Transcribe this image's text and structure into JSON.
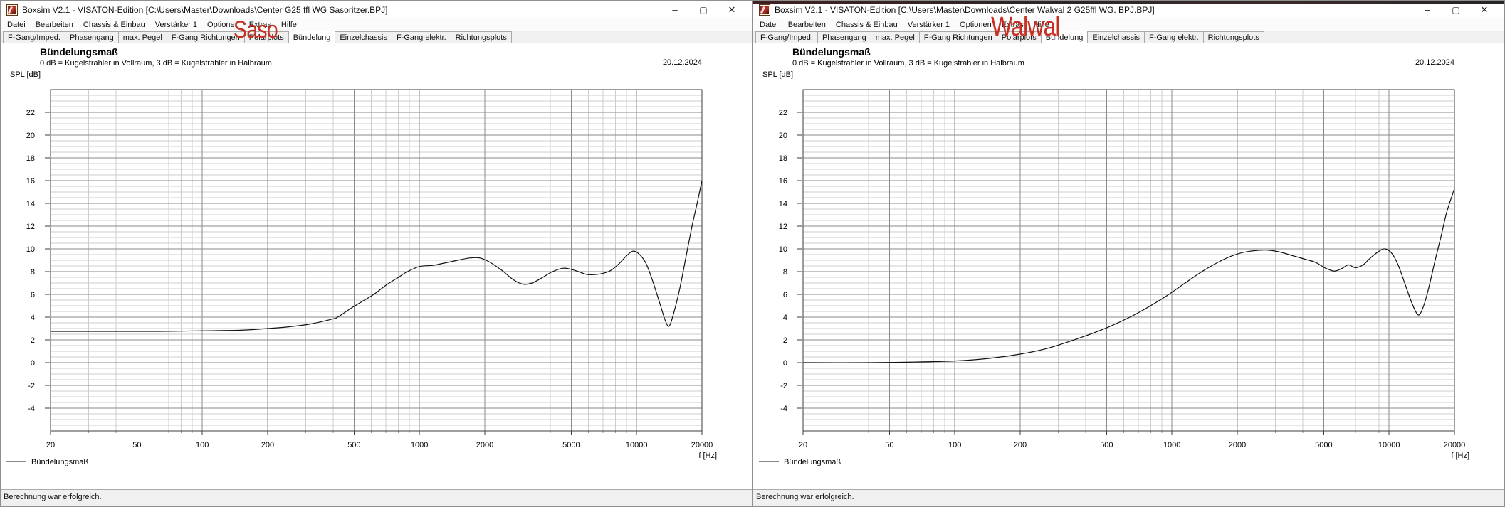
{
  "accent_colors": {
    "annotation_red": "#c62f22",
    "grid_major": "#8a8a8a",
    "grid_minor": "#cdcdcd",
    "frame": "#3c3c3c",
    "curve": "#111111",
    "chrome_bg": "#f0f0f0"
  },
  "windows": [
    {
      "title": "Boxsim V2.1 - VISATON-Edition [C:\\Users\\Master\\Downloads\\Center G25 ffl WG Sasoritzer.BPJ]",
      "annotation": "Saso",
      "menu": [
        "Datei",
        "Bearbeiten",
        "Chassis & Einbau",
        "Verstärker 1",
        "Optionen",
        "Extras",
        "Hilfe"
      ],
      "tabs": [
        "F-Gang/Imped.",
        "Phasengang",
        "max. Pegel",
        "F-Gang Richtungen",
        "Polarplots",
        "Bündelung",
        "Einzelchassis",
        "F-Gang elektr.",
        "Richtungsplots"
      ],
      "active_tab": "Bündelung",
      "window_buttons": {
        "minimize": "–",
        "maximize": "▢",
        "close": "✕"
      },
      "status": "Berechnung war erfolgreich.",
      "chart": 0
    },
    {
      "title": "Boxsim V2.1 - VISATON-Edition [C:\\Users\\Master\\Downloads\\Center Walwal 2 G25ffl WG. BPJ.BPJ]",
      "annotation": "Walwal",
      "menu": [
        "Datei",
        "Bearbeiten",
        "Chassis & Einbau",
        "Verstärker 1",
        "Optionen",
        "Extras",
        "Hilfe"
      ],
      "tabs": [
        "F-Gang/Imped.",
        "Phasengang",
        "max. Pegel",
        "F-Gang Richtungen",
        "Polarplots",
        "Bündelung",
        "Einzelchassis",
        "F-Gang elektr.",
        "Richtungsplots"
      ],
      "active_tab": "Bündelung",
      "window_buttons": {
        "minimize": "–",
        "maximize": "▢",
        "close": "✕"
      },
      "status": "Berechnung war erfolgreich.",
      "chart": 1
    }
  ],
  "chart_data": [
    {
      "type": "line",
      "title": "Bündelungsmaß",
      "subtitle": "0 dB = Kugelstrahler in Vollraum, 3 dB = Kugelstrahler in Halbraum",
      "date": "20.12.2024",
      "xlabel": "f [Hz]",
      "ylabel": "SPL [dB]",
      "xscale": "log",
      "xlim": [
        20,
        20000
      ],
      "ylim": [
        -6,
        24
      ],
      "grid": true,
      "legend_position": "bottom-left",
      "x_major_ticks": [
        20,
        50,
        100,
        200,
        500,
        1000,
        2000,
        5000,
        10000,
        20000
      ],
      "x_tick_labels": [
        "20",
        "50",
        "100",
        "200",
        "500",
        "1000",
        "2000",
        "5000",
        "10000",
        "20000"
      ],
      "x_minor_ticks": [
        30,
        40,
        60,
        70,
        80,
        90,
        300,
        400,
        600,
        700,
        800,
        900,
        3000,
        4000,
        6000,
        7000,
        8000,
        9000
      ],
      "y_labeled_ticks": [
        22,
        20,
        18,
        16,
        14,
        12,
        10,
        8,
        6,
        4,
        2,
        0,
        -2,
        -4
      ],
      "y_major_step": 2,
      "y_minor_step": 0.5,
      "series": [
        {
          "name": "Bündelungsmaß",
          "color": "#111111",
          "points": [
            [
              20,
              2.75
            ],
            [
              40,
              2.75
            ],
            [
              63,
              2.75
            ],
            [
              100,
              2.8
            ],
            [
              150,
              2.85
            ],
            [
              200,
              3.0
            ],
            [
              250,
              3.15
            ],
            [
              315,
              3.4
            ],
            [
              400,
              3.85
            ],
            [
              420,
              4.0
            ],
            [
              500,
              4.95
            ],
            [
              616,
              6.0
            ],
            [
              700,
              6.8
            ],
            [
              800,
              7.5
            ],
            [
              880,
              8.0
            ],
            [
              1000,
              8.45
            ],
            [
              1150,
              8.55
            ],
            [
              1300,
              8.75
            ],
            [
              1500,
              9.0
            ],
            [
              1700,
              9.2
            ],
            [
              1900,
              9.2
            ],
            [
              2100,
              8.85
            ],
            [
              2400,
              8.1
            ],
            [
              2700,
              7.3
            ],
            [
              3000,
              6.9
            ],
            [
              3300,
              7.0
            ],
            [
              3700,
              7.5
            ],
            [
              4100,
              8.0
            ],
            [
              4600,
              8.3
            ],
            [
              5000,
              8.2
            ],
            [
              5400,
              8.0
            ],
            [
              5900,
              7.75
            ],
            [
              6500,
              7.75
            ],
            [
              7000,
              7.85
            ],
            [
              7600,
              8.1
            ],
            [
              8300,
              8.7
            ],
            [
              9000,
              9.4
            ],
            [
              9600,
              9.8
            ],
            [
              10200,
              9.6
            ],
            [
              11000,
              8.8
            ],
            [
              11800,
              7.3
            ],
            [
              12800,
              5.2
            ],
            [
              13500,
              3.8
            ],
            [
              14100,
              3.2
            ],
            [
              14800,
              4.3
            ],
            [
              15800,
              6.5
            ],
            [
              17000,
              9.6
            ],
            [
              18000,
              12.0
            ],
            [
              19000,
              14.0
            ],
            [
              20000,
              16.0
            ]
          ]
        }
      ]
    },
    {
      "type": "line",
      "title": "Bündelungsmaß",
      "subtitle": "0 dB = Kugelstrahler in Vollraum, 3 dB = Kugelstrahler in Halbraum",
      "date": "20.12.2024",
      "xlabel": "f [Hz]",
      "ylabel": "SPL [dB]",
      "xscale": "log",
      "xlim": [
        20,
        20000
      ],
      "ylim": [
        -6,
        24
      ],
      "grid": true,
      "legend_position": "bottom-left",
      "x_major_ticks": [
        20,
        50,
        100,
        200,
        500,
        1000,
        2000,
        5000,
        10000,
        20000
      ],
      "x_tick_labels": [
        "20",
        "50",
        "100",
        "200",
        "500",
        "1000",
        "2000",
        "5000",
        "10000",
        "20000"
      ],
      "x_minor_ticks": [
        30,
        40,
        60,
        70,
        80,
        90,
        300,
        400,
        600,
        700,
        800,
        900,
        3000,
        4000,
        6000,
        7000,
        8000,
        9000
      ],
      "y_labeled_ticks": [
        22,
        20,
        18,
        16,
        14,
        12,
        10,
        8,
        6,
        4,
        2,
        0,
        -2,
        -4
      ],
      "y_major_step": 2,
      "y_minor_step": 0.5,
      "series": [
        {
          "name": "Bündelungsmaß",
          "color": "#111111",
          "points": [
            [
              20,
              0.0
            ],
            [
              40,
              0.0
            ],
            [
              63,
              0.05
            ],
            [
              100,
              0.15
            ],
            [
              140,
              0.35
            ],
            [
              200,
              0.75
            ],
            [
              260,
              1.2
            ],
            [
              330,
              1.8
            ],
            [
              420,
              2.5
            ],
            [
              520,
              3.2
            ],
            [
              640,
              4.0
            ],
            [
              780,
              4.9
            ],
            [
              950,
              5.9
            ],
            [
              1150,
              7.0
            ],
            [
              1400,
              8.1
            ],
            [
              1700,
              9.0
            ],
            [
              2000,
              9.55
            ],
            [
              2300,
              9.8
            ],
            [
              2700,
              9.9
            ],
            [
              3100,
              9.75
            ],
            [
              3600,
              9.4
            ],
            [
              4100,
              9.1
            ],
            [
              4600,
              8.8
            ],
            [
              5100,
              8.3
            ],
            [
              5600,
              8.05
            ],
            [
              6100,
              8.3
            ],
            [
              6500,
              8.6
            ],
            [
              7000,
              8.35
            ],
            [
              7600,
              8.6
            ],
            [
              8200,
              9.2
            ],
            [
              9000,
              9.8
            ],
            [
              9600,
              10.0
            ],
            [
              10300,
              9.6
            ],
            [
              11000,
              8.6
            ],
            [
              11800,
              7.0
            ],
            [
              12700,
              5.3
            ],
            [
              13600,
              4.2
            ],
            [
              14300,
              4.8
            ],
            [
              15200,
              6.5
            ],
            [
              16300,
              9.0
            ],
            [
              17300,
              11.0
            ],
            [
              18300,
              13.0
            ],
            [
              19200,
              14.3
            ],
            [
              20000,
              15.3
            ]
          ]
        }
      ]
    }
  ]
}
